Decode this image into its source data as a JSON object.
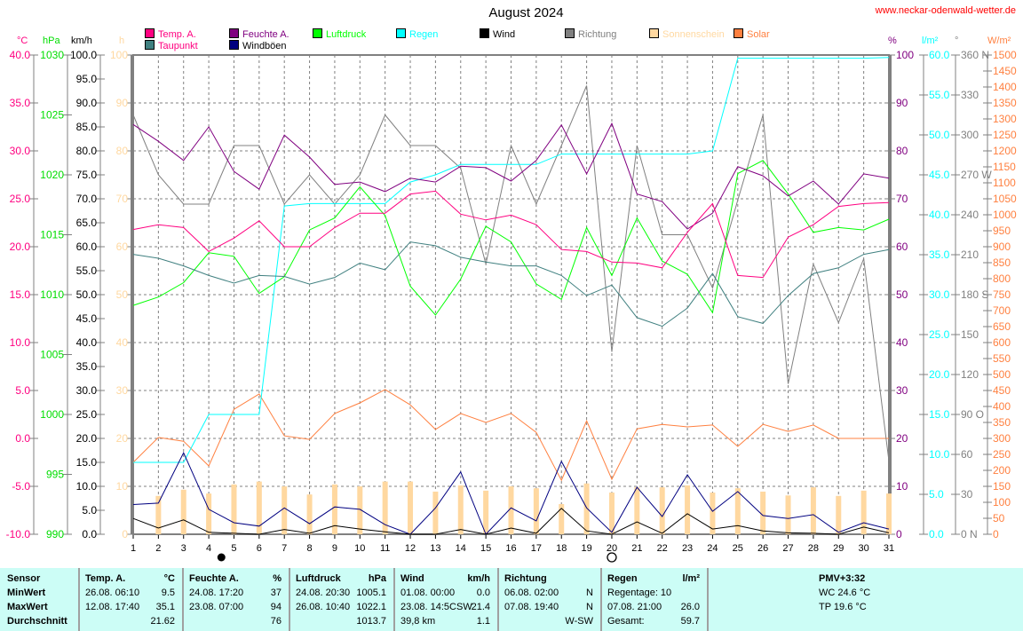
{
  "header": {
    "title": "August 2024",
    "url": "www.neckar-odenwald-wetter.de"
  },
  "legend": [
    {
      "label": "Temp. A.",
      "color": "#ff0080"
    },
    {
      "label": "Feuchte A.",
      "color": "#800080"
    },
    {
      "label": "Luftdruck",
      "color": "#00ff00"
    },
    {
      "label": "Regen",
      "color": "#00ffff"
    },
    {
      "label": "Wind",
      "color": "#000000"
    },
    {
      "label": "Richtung",
      "color": "#808080"
    },
    {
      "label": "Sonnenschein",
      "color": "#ffd8a0"
    },
    {
      "label": "Solar",
      "color": "#ff8040"
    },
    {
      "label": "Taupunkt",
      "color": "#408080"
    },
    {
      "label": "Windböen",
      "color": "#000080"
    }
  ],
  "chart_data": {
    "type": "line",
    "title": "August 2024",
    "x": [
      1,
      2,
      3,
      4,
      5,
      6,
      7,
      8,
      9,
      10,
      11,
      12,
      13,
      14,
      15,
      16,
      17,
      18,
      19,
      20,
      21,
      22,
      23,
      24,
      25,
      26,
      27,
      28,
      29,
      30,
      31
    ],
    "xlim": [
      1,
      31
    ],
    "grid": true,
    "legend_position": "top",
    "axes": {
      "temp": {
        "unit": "°C",
        "min": -10,
        "max": 40,
        "step": 5,
        "color": "#ff0080",
        "decimals": 1
      },
      "press": {
        "unit": "hPa",
        "min": 990,
        "max": 1030,
        "step": 5,
        "color": "#00dd00",
        "decimals": 0
      },
      "wind": {
        "unit": "km/h",
        "min": 0,
        "max": 100,
        "step": 5,
        "color": "#000000",
        "decimals": 1
      },
      "sun": {
        "unit": "h",
        "min": 0,
        "max": 100,
        "step": 10,
        "color": "#ffd8a0",
        "decimals": 0
      },
      "hum": {
        "unit": "%",
        "min": 0,
        "max": 100,
        "step": 10,
        "color": "#800080",
        "decimals": 0
      },
      "rain": {
        "unit": "l/m²",
        "min": 0,
        "max": 60,
        "step": 5,
        "color": "#00ffff",
        "decimals": 1
      },
      "dir": {
        "unit": "°",
        "min": 0,
        "max": 360,
        "step": 30,
        "color": "#808080",
        "decimals": 0,
        "labels": {
          "0": "N",
          "90": "O",
          "180": "S",
          "270": "W",
          "360": "N"
        }
      },
      "solar": {
        "unit": "W/m²",
        "min": 0,
        "max": 1500,
        "step": 50,
        "color": "#ff8040",
        "decimals": 0
      }
    },
    "series": [
      {
        "name": "Sonnenschein",
        "axis": "sun",
        "kind": "bar",
        "color": "#ffd8a0",
        "values": [
          0,
          8,
          9.3,
          8.5,
          10.4,
          11,
          10,
          8.3,
          10.4,
          10,
          11,
          11,
          8.9,
          10.2,
          9.1,
          10,
          9.6,
          6.3,
          10.6,
          8.7,
          9.8,
          9.8,
          10.2,
          8.7,
          9.6,
          8.9,
          8.1,
          9.8,
          8,
          9.1,
          8.5
        ]
      },
      {
        "name": "Solar",
        "axis": "solar",
        "color": "#ff8040",
        "values": [
          225,
          303,
          291,
          214,
          391,
          439,
          308,
          297,
          378,
          411,
          453,
          405,
          328,
          378,
          350,
          378,
          319,
          169,
          355,
          172,
          330,
          344,
          336,
          342,
          275,
          344,
          322,
          342,
          300,
          300,
          300
        ]
      },
      {
        "name": "Richtung",
        "axis": "dir",
        "color": "#808080",
        "values": [
          315,
          270,
          248,
          248,
          292,
          292,
          248,
          270,
          248,
          270,
          315,
          292,
          292,
          275,
          203,
          292,
          248,
          292,
          337,
          137,
          292,
          225,
          225,
          185,
          251,
          315,
          113,
          203,
          159,
          207,
          55
        ]
      },
      {
        "name": "Regen",
        "axis": "rain",
        "color": "#00ffff",
        "values": [
          9,
          9,
          9,
          15,
          15,
          15,
          41.1,
          41.4,
          41.4,
          41.4,
          41.4,
          44.1,
          45,
          46.3,
          46.3,
          46.3,
          46.3,
          47.6,
          47.6,
          47.6,
          47.6,
          47.6,
          47.6,
          48,
          59.6,
          59.6,
          59.6,
          59.6,
          59.6,
          59.6,
          59.7
        ]
      },
      {
        "name": "Luftdruck",
        "axis": "press",
        "color": "#00ff00",
        "values": [
          1009.1,
          1009.8,
          1011,
          1013.5,
          1013.2,
          1010.1,
          1011.5,
          1015.4,
          1016.4,
          1019,
          1016.6,
          1010.7,
          1008.3,
          1011.3,
          1015.7,
          1014.4,
          1010.9,
          1009.6,
          1015.6,
          1011.6,
          1016.4,
          1012.8,
          1011.7,
          1008.5,
          1020.1,
          1021.2,
          1018.4,
          1015.2,
          1015.6,
          1015.4,
          1016.3
        ]
      },
      {
        "name": "Taupunkt",
        "axis": "temp",
        "color": "#408080",
        "values": [
          19.2,
          18.8,
          18,
          17,
          16.2,
          17,
          16.9,
          16.1,
          16.8,
          18.3,
          17.6,
          20.5,
          20.1,
          18.9,
          18.4,
          18,
          18,
          17,
          14.9,
          16,
          12.6,
          11.7,
          13.6,
          17.2,
          12.7,
          12,
          14.9,
          17.2,
          17.8,
          19.2,
          19.7
        ]
      },
      {
        "name": "Feuchte A.",
        "axis": "hum",
        "color": "#800080",
        "values": [
          85.5,
          82,
          78,
          85,
          75.7,
          72,
          83.3,
          78.7,
          73,
          73.5,
          71.5,
          74.3,
          73.5,
          76.8,
          76.5,
          73.7,
          78,
          85.4,
          75.2,
          85.7,
          71,
          69.4,
          63.7,
          67,
          76.7,
          74.8,
          70.6,
          73.7,
          68.9,
          75.2,
          74.3
        ]
      },
      {
        "name": "Temp. A.",
        "axis": "temp",
        "color": "#ff0080",
        "values": [
          21.8,
          22.3,
          22,
          19.5,
          20.9,
          22.7,
          20,
          20,
          22,
          23.5,
          23.5,
          25.5,
          25.8,
          23.4,
          22.8,
          23.3,
          22.3,
          19.7,
          19.5,
          18.4,
          18.3,
          17.8,
          21.5,
          24.5,
          17,
          16.8,
          21,
          22.3,
          24.2,
          24.5,
          24.6
        ]
      },
      {
        "name": "Windböen",
        "axis": "wind",
        "color": "#000080",
        "values": [
          6.2,
          6.5,
          17,
          5.2,
          2.4,
          1.7,
          5.5,
          2.2,
          5.7,
          5.2,
          2,
          0,
          5.5,
          13,
          0,
          5.5,
          2.8,
          15.2,
          5.5,
          0.4,
          9.8,
          3.7,
          12.4,
          4.8,
          8.9,
          3.9,
          3.3,
          4.1,
          0.4,
          2.4,
          1.1
        ]
      },
      {
        "name": "Wind",
        "axis": "wind",
        "color": "#000000",
        "values": [
          3.3,
          1.3,
          3,
          0.4,
          0.2,
          0,
          1,
          0.2,
          1.8,
          1.1,
          0.5,
          0,
          0,
          1,
          0,
          1.3,
          0.2,
          5.4,
          0.7,
          0,
          2.6,
          0.2,
          4.3,
          1.1,
          1.8,
          0.7,
          0.3,
          0.2,
          0,
          1.5,
          0.3
        ]
      }
    ],
    "moon_phases": [
      {
        "phase": "new-moon",
        "day": 4.5
      },
      {
        "phase": "full-moon",
        "day": 20
      }
    ]
  },
  "table": {
    "row_labels": [
      "Sensor",
      "MinWert",
      "MaxWert",
      "Durchschnitt"
    ],
    "columns": [
      {
        "title": "Temp. A.",
        "unit": "°C",
        "rows": [
          [
            "26.08.  06:10",
            "9.5"
          ],
          [
            "12.08.  17:40",
            "35.1"
          ],
          [
            "",
            "21.62"
          ]
        ]
      },
      {
        "title": "Feuchte A.",
        "unit": "%",
        "rows": [
          [
            "24.08.  17:20",
            "37"
          ],
          [
            "23.08.  07:00",
            "94"
          ],
          [
            "",
            "76"
          ]
        ]
      },
      {
        "title": "Luftdruck",
        "unit": "hPa",
        "rows": [
          [
            "24.08.  20:30",
            "1005.1"
          ],
          [
            "26.08.  10:40",
            "1022.1"
          ],
          [
            "",
            "1013.7"
          ]
        ]
      },
      {
        "title": "Wind",
        "unit": "km/h",
        "rows": [
          [
            "01.08.  00:00",
            "0.0"
          ],
          [
            "23.08.  14:5CSW",
            "21.4"
          ],
          [
            "39,8 km",
            "1.1"
          ]
        ]
      },
      {
        "title": "Richtung",
        "unit": "",
        "rows": [
          [
            "06.08.  02:00",
            "N"
          ],
          [
            "07.08.  19:40",
            "N"
          ],
          [
            "",
            "W-SW"
          ]
        ]
      },
      {
        "title": "Regen",
        "unit": "l/m²",
        "rows": [
          [
            "Regentage: 10",
            ""
          ],
          [
            "07.08.  21:00",
            "26.0"
          ],
          [
            "Gesamt:",
            "59.7"
          ]
        ]
      }
    ],
    "extra": {
      "title": "PMV+3:32",
      "lines": [
        "WC 24.6 °C",
        "TP 19.6 °C"
      ]
    }
  }
}
